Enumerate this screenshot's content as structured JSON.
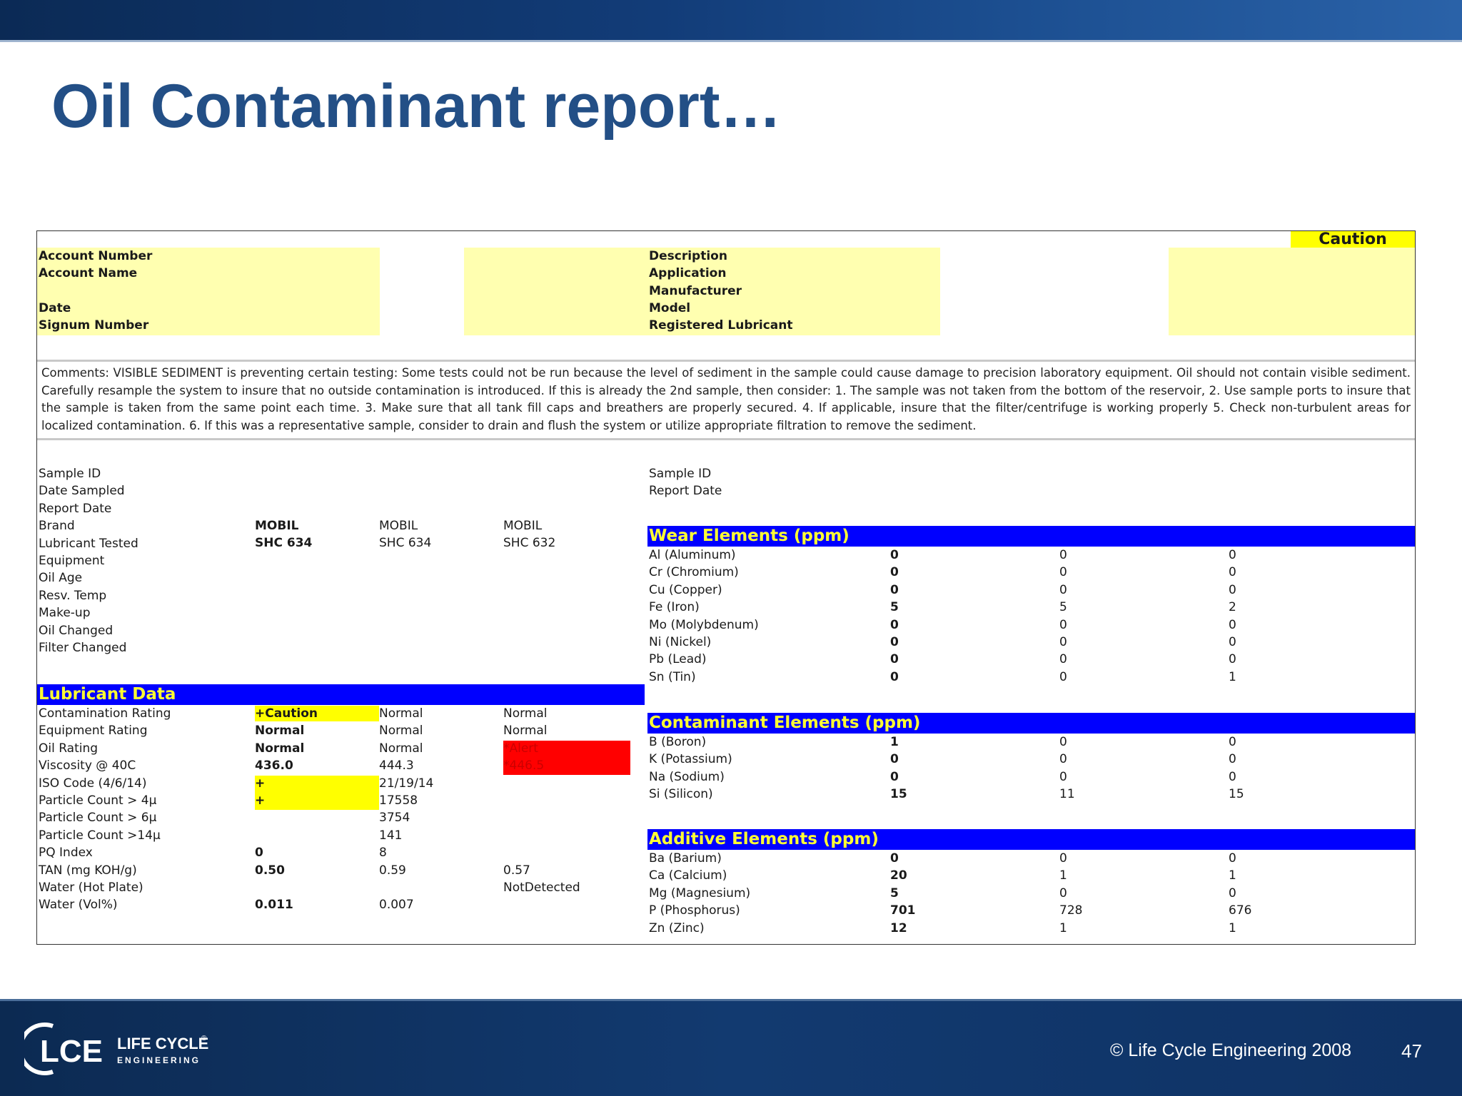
{
  "slide": {
    "title": "Oil Contaminant report…",
    "copyright": "© Life Cycle Engineering 2008",
    "page_number": "47",
    "logo": {
      "mark": "LCE",
      "line1": "LIFE CYCLE",
      "reg": "®",
      "line2": "ENGINEERING"
    }
  },
  "report": {
    "status_badge": "Caution",
    "header_left": [
      "Account Number",
      "Account Name",
      "Date",
      "Signum Number"
    ],
    "header_right": [
      "Description",
      "Application",
      "Manufacturer",
      "Model",
      "Registered Lubricant"
    ],
    "comments": "Comments: VISIBLE SEDIMENT is preventing certain testing: Some tests could not be run because the level of sediment in the sample could cause damage to precision laboratory equipment. Oil should not contain visible sediment. Carefully resample the system to insure that no outside contamination is introduced. If this is already the 2nd sample, then consider: 1. The sample was not taken from the bottom of the reservoir, 2. Use sample ports to insure that the sample is taken from the same point each time. 3. Make sure that all tank fill caps and breathers are properly secured. 4. If applicable, insure that the filter/centrifuge is working properly 5. Check non-turbulent areas for localized contamination. 6. If this was a representative sample, consider to drain and flush the system or utilize appropriate filtration to remove the sediment.",
    "sample_info": {
      "labels": [
        "Sample ID",
        "Date Sampled",
        "Report Date",
        "Brand",
        "Lubricant Tested",
        "Equipment",
        "Oil Age",
        "Resv. Temp",
        "Make-up",
        "Oil Changed",
        "Filter Changed"
      ],
      "brand": [
        "MOBIL",
        "MOBIL",
        "MOBIL"
      ],
      "lubricant": [
        "SHC 634",
        "SHC 634",
        "SHC 632"
      ]
    },
    "sample_info_right": [
      "Sample ID",
      "Report Date"
    ],
    "lubricant_data": {
      "title": "Lubricant Data",
      "rows": [
        {
          "label": "Contamination Rating",
          "values": [
            "+Caution",
            "Normal",
            "Normal"
          ]
        },
        {
          "label": "Equipment Rating",
          "values": [
            "Normal",
            "Normal",
            "Normal"
          ]
        },
        {
          "label": "Oil Rating",
          "values": [
            "Normal",
            "Normal",
            "*Alert"
          ]
        },
        {
          "label": "Viscosity @ 40C",
          "values": [
            "436.0",
            "444.3",
            "*446.5"
          ]
        },
        {
          "label": "ISO Code (4/6/14)",
          "values": [
            "+",
            "21/19/14",
            ""
          ]
        },
        {
          "label": "Particle Count > 4µ",
          "values": [
            "+",
            "17558",
            ""
          ]
        },
        {
          "label": "Particle Count > 6µ",
          "values": [
            "",
            "3754",
            ""
          ]
        },
        {
          "label": "Particle Count >14µ",
          "values": [
            "",
            "141",
            ""
          ]
        },
        {
          "label": "PQ Index",
          "values": [
            "0",
            "8",
            ""
          ]
        },
        {
          "label": "TAN (mg KOH/g)",
          "values": [
            "0.50",
            "0.59",
            "0.57"
          ]
        },
        {
          "label": "Water (Hot Plate)",
          "values": [
            "",
            "",
            "NotDetected"
          ]
        },
        {
          "label": "Water (Vol%)",
          "values": [
            "0.011",
            "0.007",
            ""
          ]
        }
      ]
    },
    "wear_elements": {
      "title": "Wear Elements (ppm)",
      "rows": [
        {
          "label": "Al (Aluminum)",
          "values": [
            "0",
            "0",
            "0"
          ]
        },
        {
          "label": "Cr (Chromium)",
          "values": [
            "0",
            "0",
            "0"
          ]
        },
        {
          "label": "Cu (Copper)",
          "values": [
            "0",
            "0",
            "0"
          ]
        },
        {
          "label": "Fe (Iron)",
          "values": [
            "5",
            "5",
            "2"
          ]
        },
        {
          "label": "Mo (Molybdenum)",
          "values": [
            "0",
            "0",
            "0"
          ]
        },
        {
          "label": "Ni (Nickel)",
          "values": [
            "0",
            "0",
            "0"
          ]
        },
        {
          "label": "Pb (Lead)",
          "values": [
            "0",
            "0",
            "0"
          ]
        },
        {
          "label": "Sn (Tin)",
          "values": [
            "0",
            "0",
            "1"
          ]
        }
      ]
    },
    "contaminant_elements": {
      "title": "Contaminant Elements (ppm)",
      "rows": [
        {
          "label": "B (Boron)",
          "values": [
            "1",
            "0",
            "0"
          ]
        },
        {
          "label": "K (Potassium)",
          "values": [
            "0",
            "0",
            "0"
          ]
        },
        {
          "label": "Na (Sodium)",
          "values": [
            "0",
            "0",
            "0"
          ]
        },
        {
          "label": "Si (Silicon)",
          "values": [
            "15",
            "11",
            "15"
          ]
        }
      ]
    },
    "additive_elements": {
      "title": "Additive Elements (ppm)",
      "rows": [
        {
          "label": "Ba (Barium)",
          "values": [
            "0",
            "0",
            "0"
          ]
        },
        {
          "label": "Ca (Calcium)",
          "values": [
            "20",
            "1",
            "1"
          ]
        },
        {
          "label": "Mg (Magnesium)",
          "values": [
            "5",
            "0",
            "0"
          ]
        },
        {
          "label": "P (Phosphorus)",
          "values": [
            "701",
            "728",
            "676"
          ]
        },
        {
          "label": "Zn (Zinc)",
          "values": [
            "12",
            "1",
            "1"
          ]
        }
      ]
    }
  }
}
